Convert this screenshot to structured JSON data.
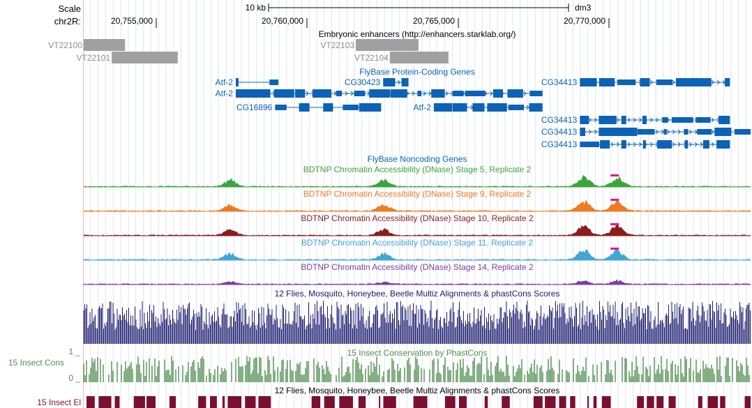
{
  "header": {
    "scale_label": "Scale",
    "scale_bar_label": "10 kb",
    "assembly": "dm3",
    "chrom_label": "chr2R:",
    "positions": [
      "20,755,000",
      "20,760,000",
      "20,765,000",
      "20,770,000"
    ]
  },
  "tracks": {
    "enhancers": {
      "title": "Embryonic enhancers (http://enhancers.starklab.org/)",
      "items": [
        {
          "label": "VT22100",
          "start": 0.0,
          "end": 0.062
        },
        {
          "label": "VT22101",
          "start": 0.042,
          "end": 0.141
        },
        {
          "label": "VT22103",
          "start": 0.408,
          "end": 0.502
        },
        {
          "label": "VT22104",
          "start": 0.459,
          "end": 0.547
        }
      ]
    },
    "flybase_coding": {
      "title": "FlyBase Protein-Coding Genes",
      "genes": [
        {
          "label": "Atf-2",
          "row": 0,
          "start": 0.228,
          "end": 0.292,
          "direction": "none"
        },
        {
          "label": "CG30423",
          "row": 0,
          "start": 0.449,
          "end": 0.487,
          "direction": "right"
        },
        {
          "label": "CG34413",
          "row": 0,
          "start": 0.744,
          "end": 0.969,
          "direction": "right"
        },
        {
          "label": "Atf-2",
          "row": 1,
          "start": 0.228,
          "end": 0.688,
          "direction": "right"
        },
        {
          "label": "CG16896",
          "row": 2,
          "start": 0.287,
          "end": 0.446,
          "direction": "none"
        },
        {
          "label": "Atf-2",
          "row": 2,
          "start": 0.525,
          "end": 0.688,
          "direction": "right"
        },
        {
          "label": "CG34413",
          "row": 3,
          "start": 0.744,
          "end": 0.969,
          "direction": "right"
        },
        {
          "label": "CG34413",
          "row": 4,
          "start": 0.744,
          "end": 1.0,
          "direction": "right"
        },
        {
          "label": "CG34413",
          "row": 5,
          "start": 0.744,
          "end": 0.969,
          "direction": "right"
        }
      ]
    },
    "flybase_noncoding": {
      "title": "FlyBase Noncoding Genes"
    },
    "dnase": [
      {
        "title": "BDTNP Chromatin Accessibility (DNase) Stage 5, Replicate 2",
        "color": "#3aa63a"
      },
      {
        "title": "BDTNP Chromatin Accessibility (DNase) Stage 9, Replicate 2",
        "color": "#f07a1f"
      },
      {
        "title": "BDTNP Chromatin Accessibility (DNase) Stage 10, Replicate 2",
        "color": "#8b1d1d"
      },
      {
        "title": "BDTNP Chromatin Accessibility (DNase) Stage 11, Replicate 2",
        "color": "#42a6d6"
      },
      {
        "title": "BDTNP Chromatin Accessibility (DNase) Stage 14, Replicate 2",
        "color": "#7b3fa0"
      }
    ],
    "multiz_top": {
      "title": "12 Flies, Mosquito, Honeybee, Beetle Multiz Alignments & phastCons Scores",
      "color": "#1b1b6e"
    },
    "phastcons": {
      "title": "15 Insect Conservation by PhastCons",
      "side_label": "15 Insect Cons",
      "ymax_label": "1 _",
      "ymin_label": "0 _",
      "color": "#4f8f4f"
    },
    "multiz_bottom": {
      "title": "12 Flies, Mosquito, Honeybee, Beetle Multiz Alignments & phastCons Scores",
      "side_label": "15 Insect El",
      "color": "#7a1030"
    }
  },
  "colors": {
    "gene": "#0b62b7",
    "enhancer": "#a0a0a0",
    "enhancer_label": "#8c8c8c",
    "grid": "#cfd4ee",
    "left_margin_line": "#f2b6b6",
    "peak_cap": "#e8138c"
  }
}
